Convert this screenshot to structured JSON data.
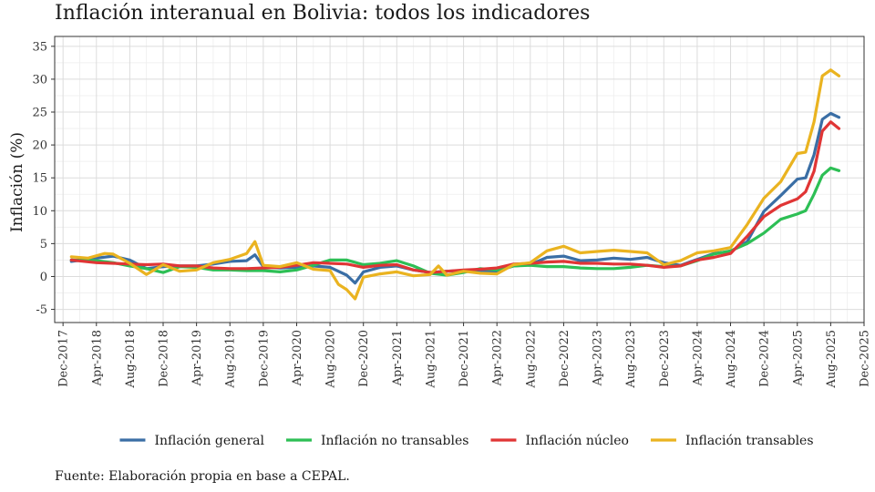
{
  "chart_data": {
    "type": "line",
    "title": "Inflación interanual en Bolivia: todos los indicadores",
    "ylabel": "Inflación (%)",
    "xlabel": "",
    "ylim": [
      -7,
      36.5
    ],
    "xlim": [
      "2017-11",
      "2025-12"
    ],
    "yticks": [
      -5,
      0,
      5,
      10,
      15,
      20,
      25,
      30,
      35
    ],
    "ytick_labels": [
      "-5",
      "0",
      "5",
      "10",
      "15",
      "20",
      "25",
      "30",
      "35"
    ],
    "xticks": [
      "2017-12",
      "2018-04",
      "2018-08",
      "2018-12",
      "2019-04",
      "2019-08",
      "2019-12",
      "2020-04",
      "2020-08",
      "2020-12",
      "2021-04",
      "2021-08",
      "2021-12",
      "2022-04",
      "2022-08",
      "2022-12",
      "2023-04",
      "2023-08",
      "2023-12",
      "2024-04",
      "2024-08",
      "2024-12",
      "2025-04",
      "2025-08",
      "2025-12"
    ],
    "xtick_labels": [
      "Dec-2017",
      "Apr-2018",
      "Aug-2018",
      "Dec-2018",
      "Apr-2019",
      "Aug-2019",
      "Dec-2019",
      "Apr-2020",
      "Aug-2020",
      "Dec-2020",
      "Apr-2021",
      "Aug-2021",
      "Dec-2021",
      "Apr-2022",
      "Aug-2022",
      "Dec-2022",
      "Apr-2023",
      "Aug-2023",
      "Dec-2023",
      "Apr-2024",
      "Aug-2024",
      "Dec-2024",
      "Apr-2025",
      "Aug-2025",
      "Dec-2025"
    ],
    "grid": true,
    "legend_position": "bottom",
    "source": "Fuente: Elaboración propia en base a CEPAL.",
    "series": [
      {
        "name": "Inflación general",
        "color": "#3a6ea5",
        "points": [
          [
            "2018-01",
            2.3
          ],
          [
            "2018-04",
            2.8
          ],
          [
            "2018-06",
            3.1
          ],
          [
            "2018-08",
            2.5
          ],
          [
            "2018-10",
            1.2
          ],
          [
            "2018-12",
            1.5
          ],
          [
            "2019-02",
            1.6
          ],
          [
            "2019-04",
            1.6
          ],
          [
            "2019-06",
            1.9
          ],
          [
            "2019-08",
            2.3
          ],
          [
            "2019-10",
            2.4
          ],
          [
            "2019-11",
            3.3
          ],
          [
            "2019-12",
            1.5
          ],
          [
            "2020-02",
            1.3
          ],
          [
            "2020-04",
            1.4
          ],
          [
            "2020-06",
            1.6
          ],
          [
            "2020-08",
            1.4
          ],
          [
            "2020-10",
            0.2
          ],
          [
            "2020-11",
            -1.0
          ],
          [
            "2020-12",
            0.7
          ],
          [
            "2021-02",
            1.4
          ],
          [
            "2021-04",
            1.6
          ],
          [
            "2021-06",
            1.0
          ],
          [
            "2021-08",
            0.6
          ],
          [
            "2021-10",
            0.8
          ],
          [
            "2021-12",
            0.9
          ],
          [
            "2022-02",
            0.9
          ],
          [
            "2022-04",
            0.8
          ],
          [
            "2022-06",
            1.6
          ],
          [
            "2022-08",
            1.8
          ],
          [
            "2022-10",
            2.9
          ],
          [
            "2022-12",
            3.1
          ],
          [
            "2023-02",
            2.4
          ],
          [
            "2023-04",
            2.5
          ],
          [
            "2023-06",
            2.8
          ],
          [
            "2023-08",
            2.6
          ],
          [
            "2023-10",
            2.9
          ],
          [
            "2023-12",
            2.1
          ],
          [
            "2024-02",
            1.7
          ],
          [
            "2024-04",
            2.6
          ],
          [
            "2024-06",
            3.5
          ],
          [
            "2024-08",
            3.8
          ],
          [
            "2024-10",
            5.3
          ],
          [
            "2024-12",
            9.9
          ],
          [
            "2025-02",
            12.3
          ],
          [
            "2025-04",
            14.8
          ],
          [
            "2025-05",
            15.0
          ],
          [
            "2025-06",
            18.5
          ],
          [
            "2025-07",
            23.9
          ],
          [
            "2025-08",
            24.8
          ],
          [
            "2025-09",
            24.2
          ]
        ]
      },
      {
        "name": "Inflación no transables",
        "color": "#2dbf55",
        "points": [
          [
            "2018-01",
            2.5
          ],
          [
            "2018-04",
            2.4
          ],
          [
            "2018-06",
            2.1
          ],
          [
            "2018-08",
            1.6
          ],
          [
            "2018-10",
            1.2
          ],
          [
            "2018-12",
            0.6
          ],
          [
            "2019-02",
            1.5
          ],
          [
            "2019-04",
            1.4
          ],
          [
            "2019-06",
            1.0
          ],
          [
            "2019-08",
            1.0
          ],
          [
            "2019-10",
            0.9
          ],
          [
            "2019-12",
            0.9
          ],
          [
            "2020-02",
            0.7
          ],
          [
            "2020-04",
            1.0
          ],
          [
            "2020-06",
            1.7
          ],
          [
            "2020-08",
            2.5
          ],
          [
            "2020-10",
            2.5
          ],
          [
            "2020-12",
            1.8
          ],
          [
            "2021-02",
            2.0
          ],
          [
            "2021-04",
            2.4
          ],
          [
            "2021-06",
            1.6
          ],
          [
            "2021-08",
            0.5
          ],
          [
            "2021-10",
            0.2
          ],
          [
            "2021-12",
            0.6
          ],
          [
            "2022-02",
            1.2
          ],
          [
            "2022-04",
            1.0
          ],
          [
            "2022-06",
            1.6
          ],
          [
            "2022-08",
            1.7
          ],
          [
            "2022-10",
            1.5
          ],
          [
            "2022-12",
            1.5
          ],
          [
            "2023-02",
            1.3
          ],
          [
            "2023-04",
            1.2
          ],
          [
            "2023-06",
            1.2
          ],
          [
            "2023-08",
            1.4
          ],
          [
            "2023-10",
            1.7
          ],
          [
            "2023-12",
            1.5
          ],
          [
            "2024-02",
            1.6
          ],
          [
            "2024-04",
            2.4
          ],
          [
            "2024-06",
            3.4
          ],
          [
            "2024-08",
            3.9
          ],
          [
            "2024-10",
            5.0
          ],
          [
            "2024-12",
            6.6
          ],
          [
            "2025-02",
            8.7
          ],
          [
            "2025-04",
            9.5
          ],
          [
            "2025-05",
            10.0
          ],
          [
            "2025-06",
            12.5
          ],
          [
            "2025-07",
            15.4
          ],
          [
            "2025-08",
            16.5
          ],
          [
            "2025-09",
            16.1
          ]
        ]
      },
      {
        "name": "Inflación núcleo",
        "color": "#e03535",
        "points": [
          [
            "2018-01",
            2.5
          ],
          [
            "2018-04",
            2.1
          ],
          [
            "2018-06",
            2.0
          ],
          [
            "2018-08",
            1.9
          ],
          [
            "2018-10",
            1.8
          ],
          [
            "2018-12",
            1.9
          ],
          [
            "2019-02",
            1.6
          ],
          [
            "2019-04",
            1.6
          ],
          [
            "2019-06",
            1.3
          ],
          [
            "2019-08",
            1.2
          ],
          [
            "2019-10",
            1.2
          ],
          [
            "2019-12",
            1.3
          ],
          [
            "2020-02",
            1.4
          ],
          [
            "2020-04",
            1.7
          ],
          [
            "2020-06",
            2.1
          ],
          [
            "2020-08",
            2.0
          ],
          [
            "2020-10",
            1.9
          ],
          [
            "2020-12",
            1.4
          ],
          [
            "2021-02",
            1.7
          ],
          [
            "2021-04",
            1.8
          ],
          [
            "2021-06",
            1.0
          ],
          [
            "2021-08",
            0.6
          ],
          [
            "2021-10",
            0.8
          ],
          [
            "2021-12",
            1.0
          ],
          [
            "2022-02",
            1.1
          ],
          [
            "2022-04",
            1.3
          ],
          [
            "2022-06",
            1.9
          ],
          [
            "2022-08",
            2.0
          ],
          [
            "2022-10",
            2.2
          ],
          [
            "2022-12",
            2.3
          ],
          [
            "2023-02",
            2.0
          ],
          [
            "2023-04",
            2.0
          ],
          [
            "2023-06",
            1.9
          ],
          [
            "2023-08",
            1.9
          ],
          [
            "2023-10",
            1.7
          ],
          [
            "2023-12",
            1.4
          ],
          [
            "2024-02",
            1.6
          ],
          [
            "2024-04",
            2.5
          ],
          [
            "2024-06",
            2.9
          ],
          [
            "2024-08",
            3.5
          ],
          [
            "2024-10",
            6.1
          ],
          [
            "2024-12",
            9.1
          ],
          [
            "2025-02",
            10.8
          ],
          [
            "2025-04",
            11.8
          ],
          [
            "2025-05",
            12.9
          ],
          [
            "2025-06",
            16.0
          ],
          [
            "2025-07",
            22.1
          ],
          [
            "2025-08",
            23.5
          ],
          [
            "2025-09",
            22.5
          ]
        ]
      },
      {
        "name": "Inflación transables",
        "color": "#eab320",
        "points": [
          [
            "2018-01",
            3.0
          ],
          [
            "2018-03",
            2.8
          ],
          [
            "2018-05",
            3.5
          ],
          [
            "2018-06",
            3.4
          ],
          [
            "2018-08",
            2.0
          ],
          [
            "2018-10",
            0.3
          ],
          [
            "2018-12",
            1.8
          ],
          [
            "2019-02",
            0.8
          ],
          [
            "2019-04",
            1.0
          ],
          [
            "2019-06",
            2.1
          ],
          [
            "2019-08",
            2.6
          ],
          [
            "2019-10",
            3.5
          ],
          [
            "2019-11",
            5.3
          ],
          [
            "2019-12",
            1.7
          ],
          [
            "2020-02",
            1.5
          ],
          [
            "2020-04",
            2.1
          ],
          [
            "2020-06",
            1.1
          ],
          [
            "2020-08",
            0.9
          ],
          [
            "2020-09",
            -1.2
          ],
          [
            "2020-10",
            -2.0
          ],
          [
            "2020-11",
            -3.4
          ],
          [
            "2020-12",
            -0.1
          ],
          [
            "2021-02",
            0.4
          ],
          [
            "2021-04",
            0.7
          ],
          [
            "2021-06",
            0.1
          ],
          [
            "2021-08",
            0.3
          ],
          [
            "2021-09",
            1.6
          ],
          [
            "2021-10",
            0.2
          ],
          [
            "2021-12",
            0.8
          ],
          [
            "2022-02",
            0.5
          ],
          [
            "2022-04",
            0.4
          ],
          [
            "2022-06",
            1.8
          ],
          [
            "2022-08",
            2.1
          ],
          [
            "2022-10",
            3.9
          ],
          [
            "2022-12",
            4.6
          ],
          [
            "2023-02",
            3.6
          ],
          [
            "2023-04",
            3.8
          ],
          [
            "2023-06",
            4.0
          ],
          [
            "2023-08",
            3.8
          ],
          [
            "2023-10",
            3.6
          ],
          [
            "2023-12",
            1.8
          ],
          [
            "2024-02",
            2.4
          ],
          [
            "2024-04",
            3.6
          ],
          [
            "2024-06",
            3.9
          ],
          [
            "2024-08",
            4.4
          ],
          [
            "2024-10",
            7.9
          ],
          [
            "2024-12",
            11.9
          ],
          [
            "2025-02",
            14.4
          ],
          [
            "2025-04",
            18.7
          ],
          [
            "2025-05",
            18.9
          ],
          [
            "2025-06",
            23.5
          ],
          [
            "2025-07",
            30.5
          ],
          [
            "2025-08",
            31.4
          ],
          [
            "2025-09",
            30.5
          ]
        ]
      }
    ]
  }
}
